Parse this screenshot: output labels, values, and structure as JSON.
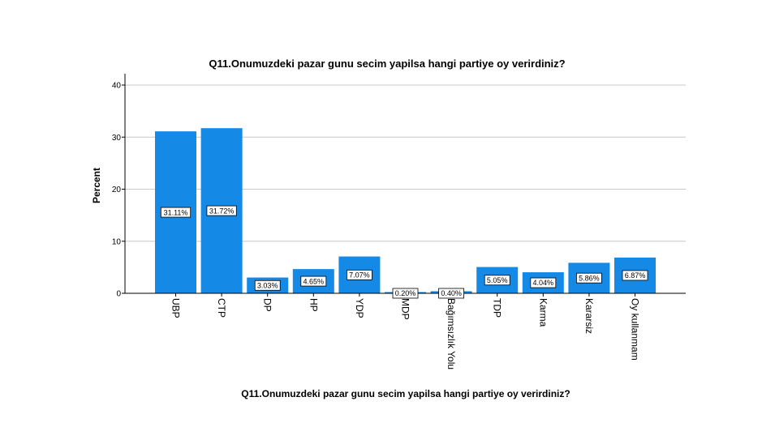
{
  "chart_data": {
    "type": "bar",
    "title": "Q11.Onumuzdeki pazar gunu secim yapilsa hangi partiye oy verirdiniz?",
    "xlabel": "Q11.Onumuzdeki pazar gunu secim yapilsa hangi partiye oy verirdiniz?",
    "ylabel": "Percent",
    "ylim": [
      0,
      40
    ],
    "yticks": [
      "0",
      "10",
      "20",
      "30",
      "40"
    ],
    "grid": true,
    "bar_color": "#1589e6",
    "categories": [
      "UBP",
      "CTP",
      "DP",
      "HP",
      "YDP",
      "MDP",
      "Bağımsızlık Yolu",
      "TDP",
      "Karma",
      "Kararsiz",
      "Oy kullanmam"
    ],
    "values": [
      31.11,
      31.72,
      3.03,
      4.65,
      7.07,
      0.2,
      0.4,
      5.05,
      4.04,
      5.86,
      6.87
    ],
    "data_labels": [
      "31.11%",
      "31.72%",
      "3.03%",
      "4.65%",
      "7.07%",
      "0.20%",
      "0.40%",
      "5.05%",
      "4.04%",
      "5.86%",
      "6.87%"
    ]
  }
}
